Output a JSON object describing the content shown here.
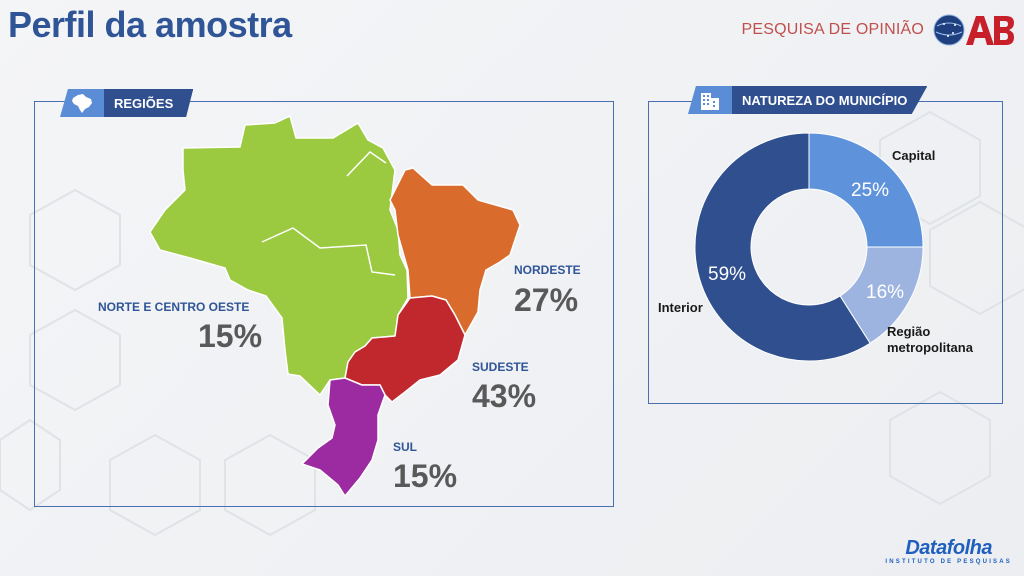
{
  "page": {
    "title": "Perfil da amostra"
  },
  "header": {
    "survey_label": "PESQUISA DE OPINIÃO",
    "logo_text": "OAB"
  },
  "regions_panel": {
    "tab_label": "REGIÕES",
    "regions": [
      {
        "name": "NORTE E CENTRO OESTE",
        "percent": "15%",
        "value": 15,
        "color": "#9bc93f"
      },
      {
        "name": "NORDESTE",
        "percent": "27%",
        "value": 27,
        "color": "#d96c2c"
      },
      {
        "name": "SUDESTE",
        "percent": "43%",
        "value": 43,
        "color": "#c0282e"
      },
      {
        "name": "SUL",
        "percent": "15%",
        "value": 15,
        "color": "#9c2aa0"
      }
    ]
  },
  "municipality_panel": {
    "tab_label": "NATUREZA DO MUNICÍPIO",
    "segments": [
      {
        "name": "Capital",
        "percent": "25%",
        "value": 25,
        "color": "#5e93dc"
      },
      {
        "name": "Região metropolitana",
        "percent": "16%",
        "value": 16,
        "color": "#9eb4e0"
      },
      {
        "name": "Interior",
        "percent": "59%",
        "value": 59,
        "color": "#2f4f8f"
      }
    ]
  },
  "footer": {
    "brand": "Datafolha",
    "brand_sub": "INSTITUTO DE PESQUISAS"
  }
}
